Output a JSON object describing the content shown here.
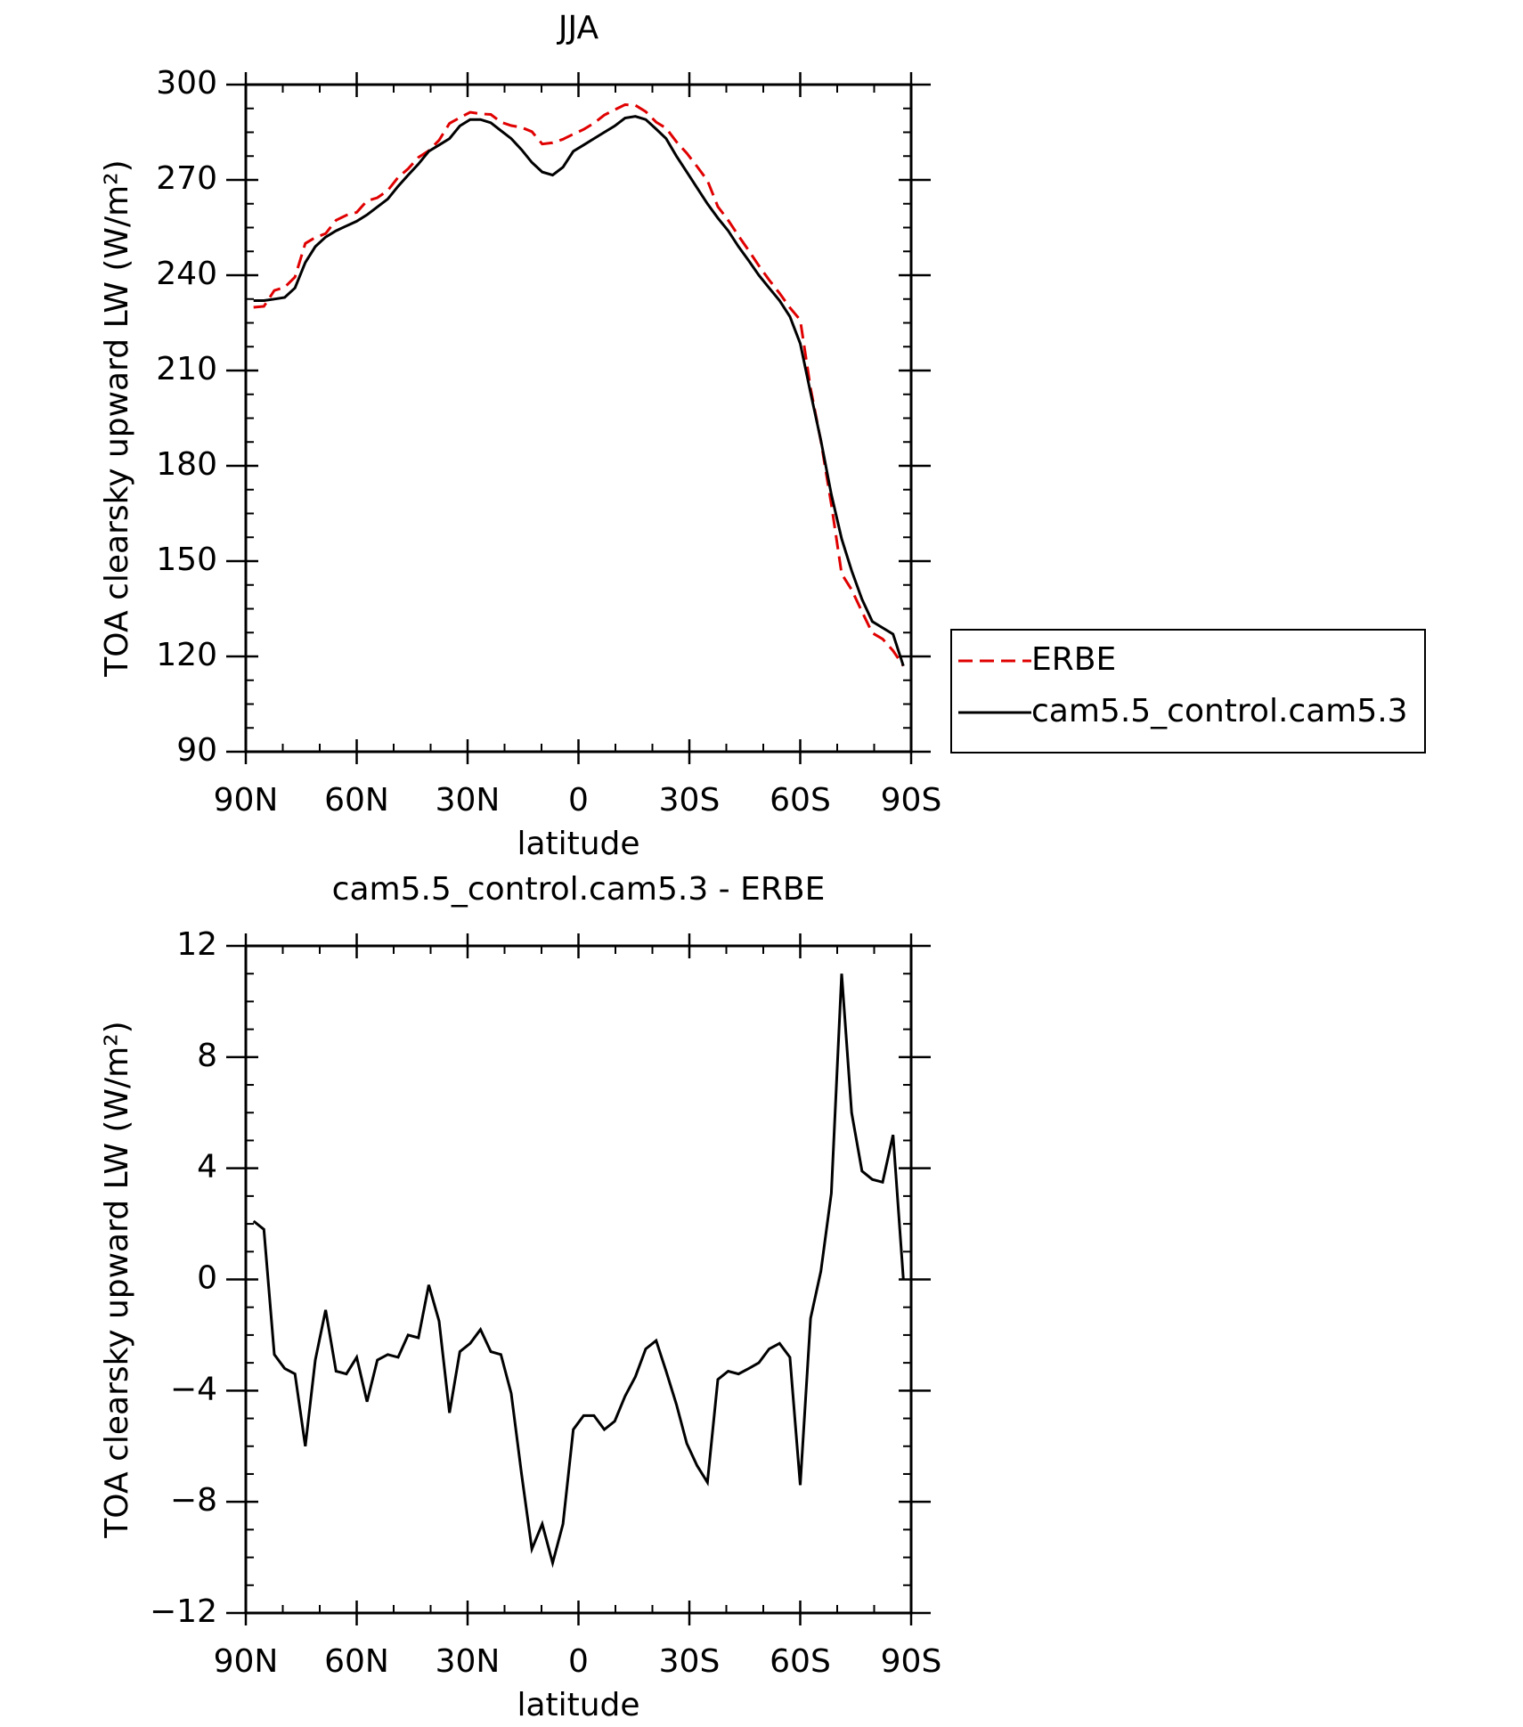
{
  "chart_data": [
    {
      "type": "line",
      "title": "JJA",
      "xlabel": "latitude",
      "ylabel": "TOA clearsky upward LW (W/m²)",
      "xlim": [
        90,
        -90
      ],
      "xticks": [
        {
          "value": 90,
          "label": "90N"
        },
        {
          "value": 60,
          "label": "60N"
        },
        {
          "value": 30,
          "label": "30N"
        },
        0,
        {
          "value": -30,
          "label": "30S"
        },
        {
          "value": -60,
          "label": "60S"
        },
        {
          "value": -90,
          "label": "90S"
        }
      ],
      "ylim": [
        90,
        300
      ],
      "yticks": [
        90,
        120,
        150,
        180,
        210,
        240,
        270,
        300
      ],
      "grid": false,
      "legend": "right",
      "x": [
        87.9,
        85.1,
        82.3,
        79.5,
        76.7,
        73.9,
        71.2,
        68.4,
        65.6,
        62.8,
        60.0,
        57.2,
        54.4,
        51.6,
        48.8,
        46.1,
        43.3,
        40.5,
        37.7,
        34.9,
        32.1,
        29.3,
        26.5,
        23.7,
        21.0,
        18.2,
        15.4,
        12.6,
        9.8,
        7.0,
        4.2,
        1.4,
        -1.4,
        -4.2,
        -7.0,
        -9.8,
        -12.6,
        -15.4,
        -18.2,
        -21.0,
        -23.7,
        -26.5,
        -29.3,
        -32.1,
        -34.9,
        -37.7,
        -40.5,
        -43.3,
        -46.1,
        -48.8,
        -51.6,
        -54.4,
        -57.2,
        -60.0,
        -62.8,
        -65.6,
        -68.4,
        -71.2,
        -73.9,
        -76.7,
        -79.5,
        -82.3,
        -85.1,
        -87.9
      ],
      "series": [
        {
          "name": "ERBE",
          "color": "#e00000",
          "dash": true,
          "values": [
            229.9,
            230.2,
            235.2,
            236.2,
            239.4,
            250.0,
            251.9,
            253.1,
            257.3,
            258.9,
            259.8,
            263.4,
            264.4,
            266.7,
            270.8,
            273.5,
            277.1,
            279.2,
            282.5,
            287.8,
            289.6,
            291.3,
            290.8,
            290.6,
            288.2,
            287.1,
            286.5,
            285.2,
            281.3,
            281.7,
            282.8,
            284.4,
            285.9,
            287.9,
            290.4,
            292.1,
            293.7,
            293.5,
            291.5,
            288.2,
            286.3,
            282.0,
            278.4,
            274.2,
            269.8,
            261.6,
            257.3,
            252.4,
            247.7,
            243.0,
            238.5,
            234.3,
            229.8,
            225.9,
            204.4,
            187.7,
            167.9,
            146.0,
            141.0,
            134.1,
            127.4,
            125.5,
            121.8,
            117.0
          ]
        },
        {
          "name": "cam5.5_control.cam5.3",
          "color": "#000000",
          "dash": false,
          "values": [
            232,
            232,
            232.5,
            233,
            236,
            244,
            249,
            252,
            254,
            255.5,
            257,
            259,
            261.5,
            264,
            268,
            271.5,
            275,
            279,
            281,
            283,
            287,
            289,
            289,
            288,
            285.5,
            283,
            279.5,
            275.5,
            272.5,
            271.5,
            274,
            279,
            281,
            283,
            285,
            287,
            289.5,
            290,
            289,
            286,
            283,
            277.5,
            272.5,
            267.5,
            262.5,
            258,
            254,
            249,
            244.5,
            240,
            236,
            232,
            227,
            218.5,
            203,
            188,
            171,
            157,
            147,
            138,
            131,
            129,
            127,
            117
          ]
        }
      ]
    },
    {
      "type": "line",
      "title": "cam5.5_control.cam5.3 - ERBE",
      "xlabel": "latitude",
      "ylabel": "TOA clearsky upward LW (W/m²)",
      "xlim": [
        90,
        -90
      ],
      "xticks": [
        {
          "value": 90,
          "label": "90N"
        },
        {
          "value": 60,
          "label": "60N"
        },
        {
          "value": 30,
          "label": "30N"
        },
        0,
        {
          "value": -30,
          "label": "30S"
        },
        {
          "value": -60,
          "label": "60S"
        },
        {
          "value": -90,
          "label": "90S"
        }
      ],
      "ylim": [
        -12,
        12
      ],
      "yticks": [
        {
          "value": -12,
          "label": "−12"
        },
        {
          "value": -8,
          "label": "−8"
        },
        {
          "value": -4,
          "label": "−4"
        },
        0,
        4,
        8,
        12
      ],
      "grid": false,
      "x": [
        87.9,
        85.1,
        82.3,
        79.5,
        76.7,
        73.9,
        71.2,
        68.4,
        65.6,
        62.8,
        60.0,
        57.2,
        54.4,
        51.6,
        48.8,
        46.1,
        43.3,
        40.5,
        37.7,
        34.9,
        32.1,
        29.3,
        26.5,
        23.7,
        21.0,
        18.2,
        15.4,
        12.6,
        9.8,
        7.0,
        4.2,
        1.4,
        -1.4,
        -4.2,
        -7.0,
        -9.8,
        -12.6,
        -15.4,
        -18.2,
        -21.0,
        -23.7,
        -26.5,
        -29.3,
        -32.1,
        -34.9,
        -37.7,
        -40.5,
        -43.3,
        -46.1,
        -48.8,
        -51.6,
        -54.4,
        -57.2,
        -60.0,
        -62.8,
        -65.6,
        -68.4,
        -71.2,
        -73.9,
        -76.7,
        -79.5,
        -82.3,
        -85.1,
        -87.9
      ],
      "color": "#000000",
      "values": [
        2.1,
        1.8,
        -2.7,
        -3.2,
        -3.4,
        -6.0,
        -2.9,
        -1.1,
        -3.3,
        -3.4,
        -2.8,
        -4.4,
        -2.9,
        -2.7,
        -2.8,
        -2.0,
        -2.1,
        -0.2,
        -1.5,
        -4.8,
        -2.6,
        -2.3,
        -1.8,
        -2.6,
        -2.7,
        -4.1,
        -7.0,
        -9.7,
        -8.8,
        -10.2,
        -8.8,
        -5.4,
        -4.9,
        -4.9,
        -5.4,
        -5.1,
        -4.2,
        -3.5,
        -2.5,
        -2.2,
        -3.3,
        -4.5,
        -5.9,
        -6.7,
        -7.3,
        -3.6,
        -3.3,
        -3.4,
        -3.2,
        -3.0,
        -2.5,
        -2.3,
        -2.8,
        -7.4,
        -1.4,
        0.3,
        3.1,
        11.0,
        6.0,
        3.9,
        3.6,
        3.5,
        5.2,
        0.0
      ]
    }
  ]
}
